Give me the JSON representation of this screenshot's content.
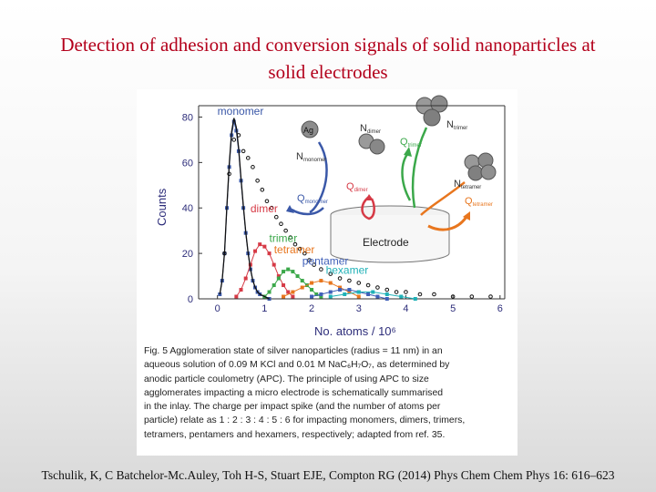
{
  "slide": {
    "title_line1": "Detection of adhesion and conversion signals of solid nanoparticles at",
    "title_line2": "solid electrodes",
    "citation": "Tschulik, K, C Batchelor-Mc.Auley, Toh H-S, Stuart EJE, Compton RG (2014) Phys Chem Chem Phys 16: 616–623"
  },
  "figure": {
    "caption_label": "Fig. 5",
    "caption_lines": [
      "Agglomeration state of silver nanoparticles (radius = 11 nm) in an",
      "aqueous solution of 0.09 M KCl and 0.01 M NaC₆H₇O₇, as determined by",
      "anodic particle coulometry (APC). The principle of using APC to size",
      "agglomerates impacting a micro electrode is schematically summarised",
      "in the inlay. The charge per impact spike (and the number of atoms per",
      "particle) relate as 1 : 2 : 3 : 4 : 5 : 6 for impacting monomers, dimers, trimers,",
      "tetramers, pentamers and hexamers, respectively; adapted from ref. 35."
    ],
    "inset": {
      "ag_label": "Ag",
      "n_monomer": "Nₘₒₙₒₘₑᵣ",
      "n_dimer_main": "N",
      "n_dimer_sub": "dimer",
      "n_trimer_main": "N",
      "n_trimer_sub": "trimer",
      "n_tetramer_main": "N",
      "n_tetramer_sub": "tetramer",
      "n_monomer_main": "N",
      "n_monomer_sub": "monomer",
      "q_monomer_main": "Q",
      "q_monomer_sub": "monomer",
      "q_dimer_main": "Q",
      "q_dimer_sub": "dimer",
      "q_trimer_main": "Q",
      "q_trimer_sub": "trimer",
      "q_tetramer_main": "Q",
      "q_tetramer_sub": "tetramer",
      "electrode_label": "Electrode"
    },
    "colors": {
      "monomer": "#3a58a8",
      "dimer": "#d63a46",
      "trimer": "#3ba84a",
      "tetramer": "#e8761e",
      "pentamer": "#3f5fb8",
      "hexamer": "#1fb1b7",
      "fit": "#111111",
      "total_points": "#111111"
    }
  },
  "chart_data": {
    "type": "line",
    "xlabel": "No. atoms / 10⁶",
    "ylabel": "Counts",
    "xlim": [
      -0.4,
      6.1
    ],
    "ylim": [
      0,
      85
    ],
    "xticks": [
      0,
      1,
      2,
      3,
      4,
      5,
      6
    ],
    "yticks": [
      0,
      20,
      40,
      60,
      80
    ],
    "grid": false,
    "series_labels_inline": true,
    "series": [
      {
        "name": "monomer",
        "x": [
          0.05,
          0.1,
          0.15,
          0.2,
          0.25,
          0.3,
          0.35,
          0.4,
          0.45,
          0.5,
          0.55,
          0.6,
          0.65,
          0.7,
          0.75,
          0.8,
          0.85,
          0.9,
          1.0,
          1.1
        ],
        "y": [
          2,
          8,
          20,
          40,
          58,
          72,
          78,
          74,
          65,
          52,
          40,
          29,
          20,
          13,
          8,
          5,
          3,
          2,
          1,
          0
        ]
      },
      {
        "name": "dimer",
        "x": [
          0.4,
          0.5,
          0.6,
          0.7,
          0.8,
          0.9,
          1.0,
          1.1,
          1.2,
          1.3,
          1.4,
          1.5,
          1.6
        ],
        "y": [
          1,
          4,
          9,
          15,
          21,
          24,
          23,
          20,
          15,
          10,
          6,
          3,
          1
        ]
      },
      {
        "name": "trimer",
        "x": [
          1.0,
          1.1,
          1.2,
          1.3,
          1.4,
          1.5,
          1.6,
          1.7,
          1.8,
          1.9,
          2.0,
          2.1,
          2.2
        ],
        "y": [
          1,
          3,
          6,
          9,
          12,
          13,
          12,
          10,
          8,
          6,
          4,
          2,
          1
        ]
      },
      {
        "name": "tetramer",
        "x": [
          1.4,
          1.6,
          1.8,
          2.0,
          2.2,
          2.4,
          2.6,
          2.8,
          3.0
        ],
        "y": [
          1,
          3,
          5,
          7,
          8,
          7,
          5,
          3,
          1
        ]
      },
      {
        "name": "pentamer",
        "x": [
          2.0,
          2.2,
          2.4,
          2.6,
          2.8,
          3.0,
          3.2,
          3.4,
          3.6
        ],
        "y": [
          1,
          2,
          3,
          4,
          4,
          3,
          2,
          1,
          0
        ]
      },
      {
        "name": "hexamer",
        "x": [
          2.4,
          2.7,
          3.0,
          3.3,
          3.6,
          3.9,
          4.2
        ],
        "y": [
          1,
          2,
          3,
          3,
          2,
          1,
          0
        ]
      }
    ],
    "total_points": {
      "x": [
        0.15,
        0.25,
        0.35,
        0.45,
        0.55,
        0.65,
        0.75,
        0.85,
        0.95,
        1.05,
        1.15,
        1.25,
        1.35,
        1.45,
        1.55,
        1.65,
        1.75,
        1.85,
        1.95,
        2.05,
        2.2,
        2.4,
        2.6,
        2.8,
        3.0,
        3.2,
        3.4,
        3.6,
        3.8,
        4.0,
        4.3,
        4.6,
        5.0,
        5.4,
        5.8
      ],
      "y": [
        20,
        55,
        70,
        72,
        65,
        62,
        58,
        52,
        48,
        43,
        40,
        36,
        33,
        30,
        27,
        24,
        22,
        20,
        17,
        15,
        13,
        11,
        9,
        8,
        7,
        6,
        5,
        4,
        3,
        3,
        2,
        2,
        1,
        1,
        1
      ]
    }
  }
}
